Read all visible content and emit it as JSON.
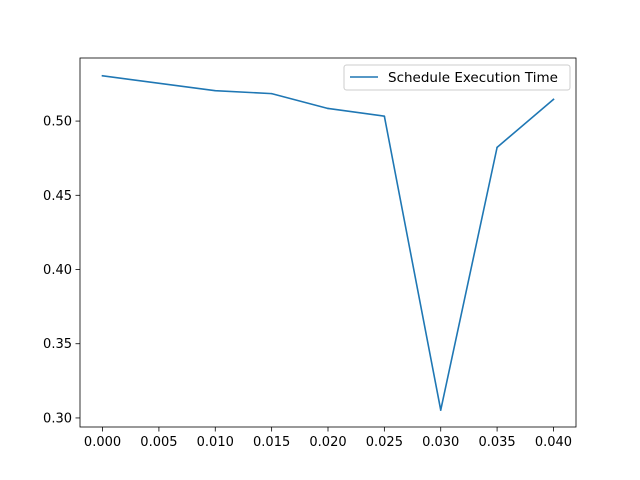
{
  "chart_data": {
    "type": "line",
    "title": "",
    "xlabel": "",
    "ylabel": "",
    "xlim": [
      -0.002,
      0.042
    ],
    "ylim": [
      0.2939,
      0.5425
    ],
    "x_ticks": [
      {
        "value": 0.0,
        "label": "0.000"
      },
      {
        "value": 0.005,
        "label": "0.005"
      },
      {
        "value": 0.01,
        "label": "0.010"
      },
      {
        "value": 0.015,
        "label": "0.015"
      },
      {
        "value": 0.02,
        "label": "0.020"
      },
      {
        "value": 0.025,
        "label": "0.025"
      },
      {
        "value": 0.03,
        "label": "0.030"
      },
      {
        "value": 0.035,
        "label": "0.035"
      },
      {
        "value": 0.04,
        "label": "0.040"
      }
    ],
    "y_ticks": [
      {
        "value": 0.3,
        "label": "0.30"
      },
      {
        "value": 0.35,
        "label": "0.35"
      },
      {
        "value": 0.4,
        "label": "0.40"
      },
      {
        "value": 0.45,
        "label": "0.45"
      },
      {
        "value": 0.5,
        "label": "0.50"
      }
    ],
    "grid": false,
    "legend_position": "top-right",
    "series": [
      {
        "name": "Schedule Execution Time",
        "color": "#1f77b4",
        "x": [
          0.0,
          0.01,
          0.015,
          0.02,
          0.025,
          0.03,
          0.035,
          0.04
        ],
        "y": [
          0.5305,
          0.5205,
          0.5185,
          0.5085,
          0.5033,
          0.3053,
          0.4823,
          0.5146
        ]
      }
    ]
  }
}
